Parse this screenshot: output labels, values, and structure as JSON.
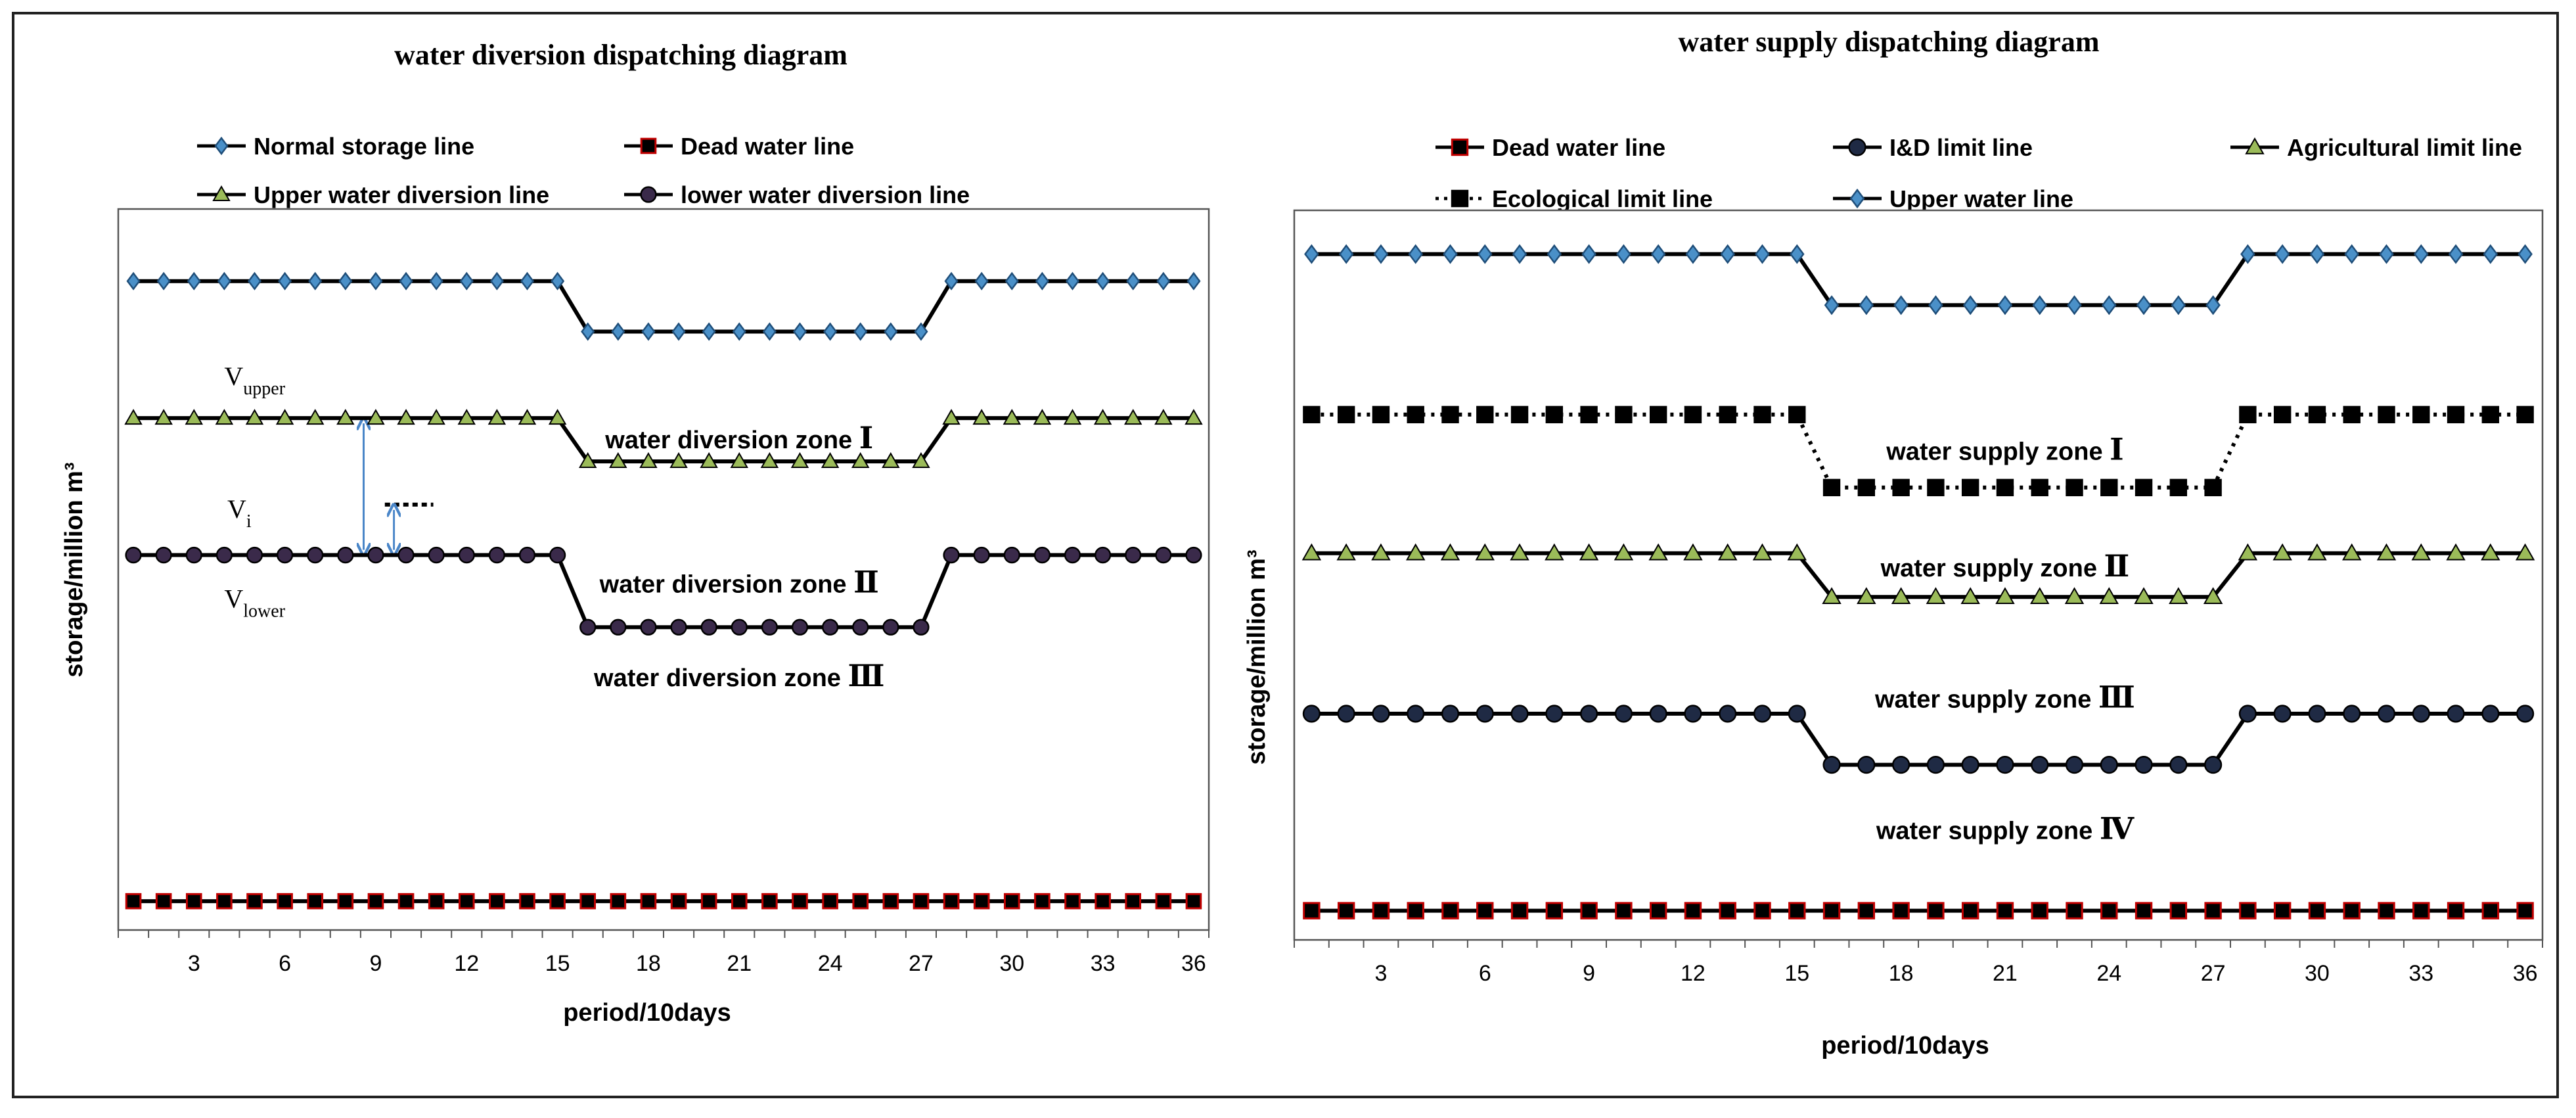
{
  "chart_data": [
    {
      "type": "line",
      "title": "water diversion dispatching diagram",
      "xlabel": "period/10days",
      "ylabel": "storage/million m³",
      "xlim": [
        0.5,
        36.5
      ],
      "ylim": [
        0,
        100
      ],
      "x_ticks": [
        3,
        6,
        9,
        12,
        15,
        18,
        21,
        24,
        27,
        30,
        33,
        36
      ],
      "x": [
        1,
        2,
        3,
        4,
        5,
        6,
        7,
        8,
        9,
        10,
        11,
        12,
        13,
        14,
        15,
        16,
        17,
        18,
        19,
        20,
        21,
        22,
        23,
        24,
        25,
        26,
        27,
        28,
        29,
        30,
        31,
        32,
        33,
        34,
        35,
        36
      ],
      "legend": {
        "columns": 2
      },
      "series": [
        {
          "name": "Normal storage line",
          "marker": "diamond",
          "color": "#1f4e79",
          "fill": "#4a90c8",
          "high": 90,
          "low": 83
        },
        {
          "name": "Dead water line",
          "marker": "square",
          "color": "#c00000",
          "fill": "#000000",
          "high": 4,
          "low": 4
        },
        {
          "name": "Upper water diversion line",
          "marker": "triangle",
          "color": "#000000",
          "fill": "#9bbb59",
          "high": 71,
          "low": 65
        },
        {
          "name": "lower water diversion line",
          "marker": "circle",
          "color": "#000000",
          "fill": "#3a2a4a",
          "high": 52,
          "low": 42
        }
      ],
      "zones": [
        {
          "text": "water diversion zone ",
          "roman": "Ⅰ",
          "x": 21,
          "y": 68
        },
        {
          "text": "water diversion zone ",
          "roman": "Ⅱ",
          "x": 21,
          "y": 48
        },
        {
          "text": "water diversion zone ",
          "roman": "Ⅲ",
          "x": 21,
          "y": 35
        }
      ],
      "annotations": {
        "v_upper_main": "V",
        "v_upper_sub": "upper",
        "v_i_main": "V",
        "v_i_sub": "i",
        "v_lower_main": "V",
        "v_lower_sub": "lower",
        "arrow_color": "#4a86c8",
        "vi_level": 59,
        "arrow_x1": 8.6,
        "arrow_x2": 9.6
      }
    },
    {
      "type": "line",
      "title": "water supply dispatching diagram",
      "xlabel": "period/10days",
      "ylabel": "storage/million m³",
      "xlim": [
        0.5,
        36.5
      ],
      "ylim": [
        0,
        100
      ],
      "x_ticks": [
        3,
        6,
        9,
        12,
        15,
        18,
        21,
        24,
        27,
        30,
        33,
        36
      ],
      "x": [
        1,
        2,
        3,
        4,
        5,
        6,
        7,
        8,
        9,
        10,
        11,
        12,
        13,
        14,
        15,
        16,
        17,
        18,
        19,
        20,
        21,
        22,
        23,
        24,
        25,
        26,
        27,
        28,
        29,
        30,
        31,
        32,
        33,
        34,
        35,
        36
      ],
      "legend": {
        "columns": 3
      },
      "series": [
        {
          "name": "Dead water line",
          "marker": "square",
          "color": "#c00000",
          "fill": "#000000",
          "high": 4,
          "low": 4
        },
        {
          "name": "I&D limit line",
          "marker": "circle",
          "color": "#000000",
          "fill": "#1f2a44",
          "high": 31,
          "low": 24
        },
        {
          "name": "Agricultural limit line",
          "marker": "triangle",
          "color": "#000000",
          "fill": "#9bbb59",
          "high": 53,
          "low": 47
        },
        {
          "name": "Ecological limit line",
          "marker": "square",
          "color": "#000000",
          "fill": "#000000",
          "high": 72,
          "low": 62,
          "dashed": true
        },
        {
          "name": "Upper water line",
          "marker": "diamond",
          "color": "#1f4e79",
          "fill": "#4a90c8",
          "high": 94,
          "low": 87
        }
      ],
      "zones": [
        {
          "text": "water supply zone ",
          "roman": "Ⅰ",
          "x": 21,
          "y": 67
        },
        {
          "text": "water supply zone ",
          "roman": "Ⅱ",
          "x": 21,
          "y": 51
        },
        {
          "text": "water supply zone ",
          "roman": "Ⅲ",
          "x": 21,
          "y": 33
        },
        {
          "text": "water supply zone ",
          "roman": "Ⅳ",
          "x": 21,
          "y": 15
        }
      ]
    }
  ]
}
